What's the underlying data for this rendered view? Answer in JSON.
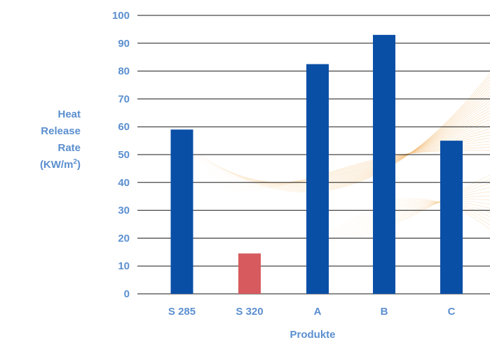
{
  "chart_data": {
    "type": "bar",
    "categories": [
      "S 285",
      "S 320",
      "A",
      "B",
      "C"
    ],
    "values": [
      59,
      14.5,
      82.5,
      93,
      55
    ],
    "bar_colors": [
      "#0a4fa6",
      "#d65a5e",
      "#0a4fa6",
      "#0a4fa6",
      "#0a4fa6"
    ],
    "title": "",
    "xlabel": "Produkte",
    "ylabel_lines": [
      "Heat",
      "Release",
      "Rate",
      "(KW/m",
      "2",
      ")"
    ],
    "ylim": [
      0,
      100
    ],
    "yticks": [
      0,
      10,
      20,
      30,
      40,
      50,
      60,
      70,
      80,
      90,
      100
    ],
    "grid": true,
    "legend": "none",
    "colors": {
      "primary": "#0a4fa6",
      "highlight": "#d65a5e",
      "text": "#5b8fcf"
    }
  }
}
